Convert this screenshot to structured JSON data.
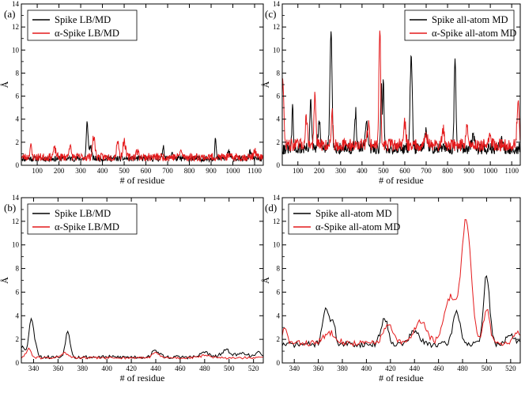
{
  "colors": {
    "black_series": "#000000",
    "red_series": "#e41a1c"
  },
  "chart_data": [
    {
      "type": "line",
      "panel_label": "(a)",
      "xlabel": "# of residue",
      "ylabel": "Å",
      "xlim": [
        27,
        1140
      ],
      "ylim": [
        0,
        14
      ],
      "xticks": [
        100,
        200,
        300,
        400,
        500,
        600,
        700,
        800,
        900,
        1000,
        1100
      ],
      "yticks": [
        0,
        2,
        4,
        6,
        8,
        10,
        12,
        14
      ],
      "legend_position": "top-left",
      "series": [
        {
          "name": "Spike LB/MD",
          "color": "#000000",
          "base": 0.5,
          "noise": 0.25,
          "seed": 11,
          "peaks": [
            [
              330,
              3.7,
              4
            ],
            [
              345,
              1.6,
              5
            ],
            [
              680,
              1.6,
              4
            ],
            [
              720,
              1.1,
              4
            ],
            [
              920,
              2.3,
              3
            ],
            [
              980,
              1.2,
              5
            ],
            [
              1080,
              1.1,
              5
            ]
          ]
        },
        {
          "name": "α-Spike LB/MD",
          "color": "#e41a1c",
          "base": 0.6,
          "noise": 0.35,
          "seed": 23,
          "peaks": [
            [
              70,
              1.6,
              4
            ],
            [
              180,
              1.3,
              6
            ],
            [
              250,
              1.6,
              5
            ],
            [
              360,
              2.3,
              6
            ],
            [
              470,
              2.1,
              5
            ],
            [
              500,
              2.0,
              6
            ],
            [
              560,
              1.1,
              6
            ],
            [
              760,
              1.1,
              6
            ],
            [
              1100,
              1.2,
              5
            ]
          ]
        }
      ]
    },
    {
      "type": "line",
      "panel_label": "(c)",
      "xlabel": "# of residue",
      "ylabel": "Å",
      "xlim": [
        27,
        1140
      ],
      "ylim": [
        0,
        14
      ],
      "xticks": [
        100,
        200,
        300,
        400,
        500,
        600,
        700,
        800,
        900,
        1000,
        1100
      ],
      "yticks": [
        0,
        2,
        4,
        6,
        8,
        10,
        12,
        14
      ],
      "legend_position": "top-right",
      "series": [
        {
          "name": "Spike all-atom MD",
          "color": "#000000",
          "base": 1.3,
          "noise": 0.5,
          "seed": 31,
          "peaks": [
            [
              75,
              5.0,
              3
            ],
            [
              160,
              5.3,
              4
            ],
            [
              200,
              3.5,
              5
            ],
            [
              255,
              11.6,
              5
            ],
            [
              370,
              4.5,
              4
            ],
            [
              420,
              3.8,
              5
            ],
            [
              490,
              7.2,
              3
            ],
            [
              500,
              7.3,
              3
            ],
            [
              630,
              9.3,
              5
            ],
            [
              700,
              2.8,
              5
            ],
            [
              835,
              9.1,
              4
            ],
            [
              920,
              2.5,
              6
            ],
            [
              1050,
              2.0,
              6
            ]
          ]
        },
        {
          "name": "α-Spike all-atom MD",
          "color": "#e41a1c",
          "base": 1.6,
          "noise": 0.55,
          "seed": 47,
          "peaks": [
            [
              30,
              7.5,
              4
            ],
            [
              140,
              4.0,
              5
            ],
            [
              180,
              6.0,
              4
            ],
            [
              260,
              4.5,
              4
            ],
            [
              430,
              3.5,
              5
            ],
            [
              483,
              12.0,
              4
            ],
            [
              600,
              3.5,
              5
            ],
            [
              700,
              2.5,
              6
            ],
            [
              780,
              3.0,
              5
            ],
            [
              890,
              3.2,
              5
            ],
            [
              1000,
              2.2,
              6
            ],
            [
              1130,
              5.5,
              5
            ]
          ]
        }
      ]
    },
    {
      "type": "line",
      "panel_label": "(b)",
      "xlabel": "# of residue",
      "ylabel": "Å",
      "xlim": [
        330,
        528
      ],
      "ylim": [
        0,
        14
      ],
      "xticks": [
        340,
        360,
        380,
        400,
        420,
        440,
        460,
        480,
        500,
        520
      ],
      "yticks": [
        0,
        2,
        4,
        6,
        8,
        10,
        12,
        14
      ],
      "legend_position": "top-left",
      "series": [
        {
          "name": "Spike LB/MD",
          "color": "#000000",
          "base": 0.45,
          "noise": 0.15,
          "seed": 53,
          "peaks": [
            [
              331,
              1.5,
              1.5
            ],
            [
              338,
              3.7,
              2
            ],
            [
              342,
              1.2,
              1.5
            ],
            [
              368,
              2.6,
              2
            ],
            [
              440,
              1.0,
              3
            ],
            [
              480,
              0.9,
              3
            ],
            [
              498,
              1.0,
              4
            ],
            [
              512,
              0.8,
              4
            ],
            [
              525,
              0.9,
              2
            ]
          ]
        },
        {
          "name": "α-Spike LB/MD",
          "color": "#e41a1c",
          "base": 0.4,
          "noise": 0.1,
          "seed": 61,
          "peaks": [
            [
              336,
              1.2,
              2
            ],
            [
              365,
              0.8,
              3
            ],
            [
              440,
              0.8,
              3
            ],
            [
              480,
              0.6,
              4
            ]
          ]
        }
      ]
    },
    {
      "type": "line",
      "panel_label": "(d)",
      "xlabel": "# of residue",
      "ylabel": "Å",
      "xlim": [
        330,
        528
      ],
      "ylim": [
        0,
        14
      ],
      "xticks": [
        340,
        360,
        380,
        400,
        420,
        440,
        460,
        480,
        500,
        520
      ],
      "yticks": [
        0,
        2,
        4,
        6,
        8,
        10,
        12,
        14
      ],
      "legend_position": "top-left",
      "series": [
        {
          "name": "Spike all-atom MD",
          "color": "#000000",
          "base": 1.5,
          "noise": 0.25,
          "seed": 71,
          "peaks": [
            [
              366,
              4.6,
              2.5
            ],
            [
              372,
              3.5,
              2
            ],
            [
              415,
              3.7,
              3
            ],
            [
              440,
              2.6,
              4
            ],
            [
              475,
              4.3,
              3
            ],
            [
              500,
              7.4,
              2.5
            ],
            [
              520,
              2.2,
              4
            ]
          ]
        },
        {
          "name": "α-Spike all-atom MD",
          "color": "#e41a1c",
          "base": 1.6,
          "noise": 0.25,
          "seed": 83,
          "peaks": [
            [
              332,
              2.8,
              2
            ],
            [
              370,
              2.5,
              5
            ],
            [
              418,
              3.1,
              4
            ],
            [
              445,
              3.5,
              5
            ],
            [
              470,
              5.5,
              5
            ],
            [
              483,
              12.0,
              4
            ],
            [
              500,
              4.6,
              2.5
            ],
            [
              525,
              2.6,
              3
            ]
          ]
        }
      ]
    }
  ]
}
